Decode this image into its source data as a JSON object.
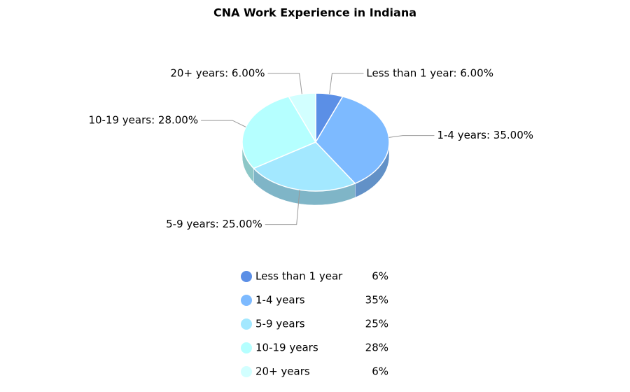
{
  "chart_data": {
    "type": "pie",
    "title": "CNA Work Experience in Indiana",
    "categories": [
      "Less than 1 year",
      "1-4 years",
      "5-9 years",
      "10-19 years",
      "20+ years"
    ],
    "values": [
      6,
      35,
      25,
      28,
      6
    ],
    "value_labels": [
      "Less than 1 year: 6.00%",
      "1-4 years: 35.00%",
      "5-9 years: 25.00%",
      "10-19 years: 28.00%",
      "20+ years: 6.00%"
    ],
    "legend_value_labels": [
      "6%",
      "35%",
      "25%",
      "28%",
      "6%"
    ],
    "colors": [
      "#5b8fe6",
      "#7dbaff",
      "#a3e8ff",
      "#b5ffff",
      "#d2ffff"
    ]
  }
}
